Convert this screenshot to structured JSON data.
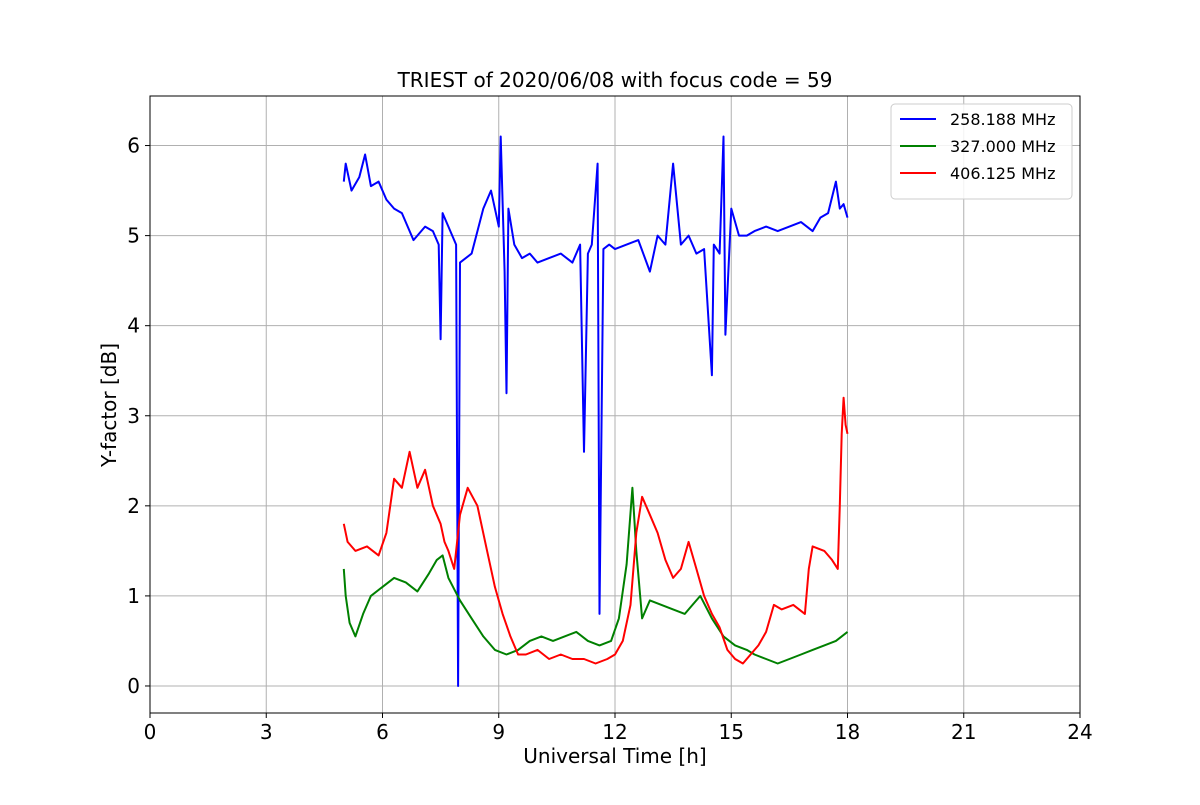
{
  "chart_data": {
    "type": "line",
    "title": "TRIEST of 2020/06/08 with focus code = 59",
    "xlabel": "Universal Time [h]",
    "ylabel": "Y-factor [dB]",
    "xlim": [
      0,
      24
    ],
    "ylim": [
      -0.3,
      6.55
    ],
    "xticks": [
      0,
      3,
      6,
      9,
      12,
      15,
      18,
      21,
      24
    ],
    "yticks": [
      0,
      1,
      2,
      3,
      4,
      5,
      6
    ],
    "grid": true,
    "legend_position": "top-right",
    "series": [
      {
        "name": "258.188 MHz",
        "color": "#0000ff",
        "x": [
          5.0,
          5.05,
          5.2,
          5.4,
          5.55,
          5.7,
          5.9,
          6.1,
          6.3,
          6.5,
          6.8,
          7.1,
          7.3,
          7.45,
          7.5,
          7.55,
          7.7,
          7.9,
          7.95,
          8.0,
          8.3,
          8.6,
          8.8,
          9.0,
          9.05,
          9.15,
          9.2,
          9.25,
          9.4,
          9.6,
          9.8,
          10.0,
          10.3,
          10.6,
          10.9,
          11.1,
          11.2,
          11.3,
          11.4,
          11.55,
          11.6,
          11.7,
          11.85,
          12.0,
          12.3,
          12.6,
          12.9,
          13.1,
          13.3,
          13.5,
          13.7,
          13.9,
          14.1,
          14.3,
          14.5,
          14.55,
          14.7,
          14.8,
          14.85,
          15.0,
          15.2,
          15.4,
          15.6,
          15.9,
          16.2,
          16.5,
          16.8,
          17.1,
          17.3,
          17.5,
          17.7,
          17.8,
          17.9,
          18.0
        ],
        "y": [
          5.6,
          5.8,
          5.5,
          5.65,
          5.9,
          5.55,
          5.6,
          5.4,
          5.3,
          5.25,
          4.95,
          5.1,
          5.05,
          4.9,
          3.85,
          5.25,
          5.1,
          4.9,
          0.0,
          4.7,
          4.8,
          5.3,
          5.5,
          5.1,
          6.1,
          4.6,
          3.25,
          5.3,
          4.9,
          4.75,
          4.8,
          4.7,
          4.75,
          4.8,
          4.7,
          4.9,
          2.6,
          4.8,
          4.9,
          5.8,
          0.8,
          4.85,
          4.9,
          4.85,
          4.9,
          4.95,
          4.6,
          5.0,
          4.9,
          5.8,
          4.9,
          5.0,
          4.8,
          4.85,
          3.45,
          4.9,
          4.8,
          6.1,
          3.9,
          5.3,
          5.0,
          5.0,
          5.05,
          5.1,
          5.05,
          5.1,
          5.15,
          5.05,
          5.2,
          5.25,
          5.6,
          5.3,
          5.35,
          5.2
        ]
      },
      {
        "name": "327.000 MHz",
        "color": "#008000",
        "x": [
          5.0,
          5.05,
          5.15,
          5.3,
          5.5,
          5.7,
          6.0,
          6.3,
          6.6,
          6.9,
          7.2,
          7.4,
          7.55,
          7.7,
          8.0,
          8.3,
          8.6,
          8.9,
          9.2,
          9.5,
          9.8,
          10.1,
          10.4,
          10.7,
          11.0,
          11.3,
          11.6,
          11.9,
          12.1,
          12.3,
          12.45,
          12.55,
          12.7,
          12.9,
          13.2,
          13.5,
          13.8,
          14.0,
          14.2,
          14.5,
          14.8,
          15.1,
          15.4,
          15.6,
          15.9,
          16.2,
          16.5,
          16.8,
          17.1,
          17.4,
          17.7,
          17.85,
          18.0
        ],
        "y": [
          1.3,
          1.0,
          0.7,
          0.55,
          0.8,
          1.0,
          1.1,
          1.2,
          1.15,
          1.05,
          1.25,
          1.4,
          1.45,
          1.2,
          0.95,
          0.75,
          0.55,
          0.4,
          0.35,
          0.4,
          0.5,
          0.55,
          0.5,
          0.55,
          0.6,
          0.5,
          0.45,
          0.5,
          0.75,
          1.35,
          2.2,
          1.5,
          0.75,
          0.95,
          0.9,
          0.85,
          0.8,
          0.9,
          1.0,
          0.75,
          0.55,
          0.45,
          0.4,
          0.35,
          0.3,
          0.25,
          0.3,
          0.35,
          0.4,
          0.45,
          0.5,
          0.55,
          0.6
        ]
      },
      {
        "name": "406.125 MHz",
        "color": "#ff0000",
        "x": [
          5.0,
          5.1,
          5.3,
          5.6,
          5.9,
          6.1,
          6.3,
          6.5,
          6.7,
          6.9,
          7.1,
          7.3,
          7.5,
          7.6,
          7.7,
          7.85,
          8.0,
          8.2,
          8.45,
          8.7,
          8.9,
          9.1,
          9.3,
          9.5,
          9.7,
          10.0,
          10.3,
          10.6,
          10.9,
          11.2,
          11.5,
          11.8,
          12.0,
          12.2,
          12.4,
          12.55,
          12.7,
          12.9,
          13.1,
          13.3,
          13.5,
          13.7,
          13.9,
          14.1,
          14.3,
          14.5,
          14.7,
          14.9,
          15.1,
          15.3,
          15.5,
          15.7,
          15.9,
          16.1,
          16.3,
          16.6,
          16.9,
          17.0,
          17.1,
          17.4,
          17.6,
          17.75,
          17.8,
          17.85,
          17.9,
          17.95,
          18.0
        ],
        "y": [
          1.8,
          1.6,
          1.5,
          1.55,
          1.45,
          1.7,
          2.3,
          2.2,
          2.6,
          2.2,
          2.4,
          2.0,
          1.8,
          1.6,
          1.5,
          1.3,
          1.9,
          2.2,
          2.0,
          1.5,
          1.1,
          0.8,
          0.55,
          0.35,
          0.35,
          0.4,
          0.3,
          0.35,
          0.3,
          0.3,
          0.25,
          0.3,
          0.35,
          0.5,
          0.9,
          1.7,
          2.1,
          1.9,
          1.7,
          1.4,
          1.2,
          1.3,
          1.6,
          1.3,
          1.0,
          0.8,
          0.65,
          0.4,
          0.3,
          0.25,
          0.35,
          0.45,
          0.6,
          0.9,
          0.85,
          0.9,
          0.8,
          1.3,
          1.55,
          1.5,
          1.4,
          1.3,
          2.0,
          2.8,
          3.2,
          2.9,
          2.8
        ]
      }
    ]
  }
}
